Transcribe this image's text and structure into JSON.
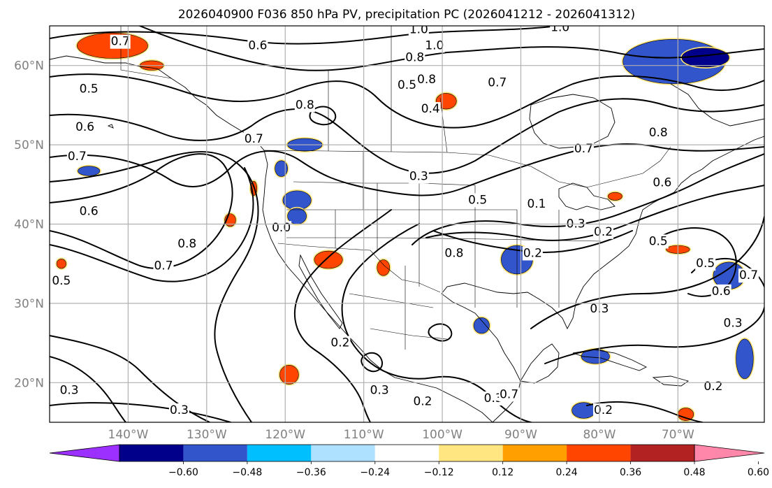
{
  "title": "2026040900 F036 850 hPa PV, precipitation PC (2026041212 - 2026041312)",
  "map": {
    "lon_range": [
      -150,
      -59
    ],
    "lat_range": [
      15,
      65
    ],
    "lat_ticks": [
      {
        "value": 20,
        "label": "20°N"
      },
      {
        "value": 30,
        "label": "30°N"
      },
      {
        "value": 40,
        "label": "40°N"
      },
      {
        "value": 50,
        "label": "50°N"
      },
      {
        "value": 60,
        "label": "60°N"
      }
    ],
    "lon_ticks": [
      {
        "value": -140,
        "label": "140°W"
      },
      {
        "value": -130,
        "label": "130°W"
      },
      {
        "value": -120,
        "label": "120°W"
      },
      {
        "value": -110,
        "label": "110°W"
      },
      {
        "value": -100,
        "label": "100°W"
      },
      {
        "value": -90,
        "label": "90°W"
      },
      {
        "value": -80,
        "label": "80°W"
      },
      {
        "value": -70,
        "label": "70°W"
      }
    ],
    "grid": true,
    "contour_color": "#000000"
  },
  "contour_labels": [
    {
      "text": "0.7",
      "lon": -141,
      "lat": 63
    },
    {
      "text": "0.6",
      "lon": -123.5,
      "lat": 62.5
    },
    {
      "text": "1.0",
      "lon": -103,
      "lat": 64.5
    },
    {
      "text": "1.0",
      "lon": -85,
      "lat": 64.8
    },
    {
      "text": "0.8",
      "lon": -103.5,
      "lat": 61
    },
    {
      "text": "1.0",
      "lon": -101,
      "lat": 62.5
    },
    {
      "text": "0.8",
      "lon": -102,
      "lat": 58.2
    },
    {
      "text": "0.5",
      "lon": -104.5,
      "lat": 57.5
    },
    {
      "text": "0.7",
      "lon": -93,
      "lat": 57.8
    },
    {
      "text": "0.4",
      "lon": -101.5,
      "lat": 54.5
    },
    {
      "text": "0.8",
      "lon": -117.5,
      "lat": 55
    },
    {
      "text": "0.5",
      "lon": -145,
      "lat": 57
    },
    {
      "text": "0.6",
      "lon": -145.5,
      "lat": 52.2
    },
    {
      "text": "0.7",
      "lon": -146.5,
      "lat": 48.5
    },
    {
      "text": "0.7",
      "lon": -124,
      "lat": 50.7
    },
    {
      "text": "0.3",
      "lon": -103,
      "lat": 46
    },
    {
      "text": "0.5",
      "lon": -95.5,
      "lat": 43
    },
    {
      "text": "0.6",
      "lon": -145,
      "lat": 41.6
    },
    {
      "text": "0.8",
      "lon": -132.5,
      "lat": 37.5
    },
    {
      "text": "0.7",
      "lon": -135.5,
      "lat": 34.7
    },
    {
      "text": "0.0",
      "lon": -120.5,
      "lat": 39.5
    },
    {
      "text": "0.8",
      "lon": -98.5,
      "lat": 36.3
    },
    {
      "text": "0.2",
      "lon": -88.5,
      "lat": 36.3
    },
    {
      "text": "0.3",
      "lon": -83,
      "lat": 40
    },
    {
      "text": "0.2",
      "lon": -79.5,
      "lat": 39
    },
    {
      "text": "0.1",
      "lon": -88,
      "lat": 42.5
    },
    {
      "text": "0.8",
      "lon": -72.5,
      "lat": 51.5
    },
    {
      "text": "0.6",
      "lon": -72,
      "lat": 45.2
    },
    {
      "text": "0.7",
      "lon": -82,
      "lat": 49.5
    },
    {
      "text": "0.5",
      "lon": -72.5,
      "lat": 37.8
    },
    {
      "text": "0.5",
      "lon": -66.5,
      "lat": 35
    },
    {
      "text": "0.6",
      "lon": -64.5,
      "lat": 31.5
    },
    {
      "text": "0.7",
      "lon": -61,
      "lat": 33.5
    },
    {
      "text": "0.3",
      "lon": -63,
      "lat": 27.5
    },
    {
      "text": "0.3",
      "lon": -80,
      "lat": 29.3
    },
    {
      "text": "0.2",
      "lon": -113,
      "lat": 25
    },
    {
      "text": "0.3",
      "lon": -108,
      "lat": 19
    },
    {
      "text": "0.2",
      "lon": -102.5,
      "lat": 17.6
    },
    {
      "text": "0.3",
      "lon": -93.5,
      "lat": 18
    },
    {
      "text": "0.7",
      "lon": -91.5,
      "lat": 18.5
    },
    {
      "text": "0.2",
      "lon": -79.5,
      "lat": 16.5
    },
    {
      "text": "0.2",
      "lon": -65.5,
      "lat": 19.5
    },
    {
      "text": "0.3",
      "lon": -147.5,
      "lat": 19
    },
    {
      "text": "0.3",
      "lon": -133.5,
      "lat": 16.5
    },
    {
      "text": "0.5",
      "lon": -148.5,
      "lat": 32.8
    }
  ],
  "colorbar": {
    "colors": [
      "#9b30ff",
      "#00008b",
      "#3355cc",
      "#00bfff",
      "#aee1ff",
      "#ffffff",
      "#ffe680",
      "#ffa000",
      "#ff4500",
      "#b22222",
      "#ff88aa"
    ],
    "tick_labels": [
      "−0.60",
      "−0.48",
      "−0.36",
      "−0.24",
      "−0.12",
      "0.12",
      "0.24",
      "0.36",
      "0.48",
      "0.60"
    ]
  },
  "precip_blobs": [
    {
      "lon": -142,
      "lat": 62.5,
      "rx": 4.5,
      "ry": 1.6,
      "color": "#ff4500"
    },
    {
      "lon": -137,
      "lat": 60,
      "rx": 1.5,
      "ry": 0.6,
      "color": "#ff4500"
    },
    {
      "lon": -99.5,
      "lat": 55.5,
      "rx": 1.3,
      "ry": 1,
      "color": "#ff4500"
    },
    {
      "lon": -117.5,
      "lat": 50,
      "rx": 2.2,
      "ry": 0.8,
      "color": "#3355cc"
    },
    {
      "lon": -120.5,
      "lat": 47,
      "rx": 0.8,
      "ry": 1,
      "color": "#3355cc"
    },
    {
      "lon": -118.5,
      "lat": 43,
      "rx": 1.8,
      "ry": 1.2,
      "color": "#3355cc"
    },
    {
      "lon": -118.5,
      "lat": 41,
      "rx": 1.2,
      "ry": 1,
      "color": "#3355cc"
    },
    {
      "lon": -114.5,
      "lat": 35.5,
      "rx": 1.8,
      "ry": 1.1,
      "color": "#ff4500"
    },
    {
      "lon": -107.5,
      "lat": 34.5,
      "rx": 0.8,
      "ry": 1,
      "color": "#ff4500"
    },
    {
      "lon": -127,
      "lat": 40.5,
      "rx": 0.7,
      "ry": 0.8,
      "color": "#ff4500"
    },
    {
      "lon": -124,
      "lat": 44.5,
      "rx": 0.4,
      "ry": 0.9,
      "color": "#ff4500"
    },
    {
      "lon": -145,
      "lat": 46.7,
      "rx": 1.4,
      "ry": 0.6,
      "color": "#3355cc"
    },
    {
      "lon": -90.5,
      "lat": 35.5,
      "rx": 2,
      "ry": 1.8,
      "color": "#3355cc"
    },
    {
      "lon": -70.5,
      "lat": 60.5,
      "rx": 6.5,
      "ry": 2.8,
      "color": "#3355cc"
    },
    {
      "lon": -66.5,
      "lat": 61,
      "rx": 3,
      "ry": 1.2,
      "color": "#00008b"
    },
    {
      "lon": -78,
      "lat": 43.5,
      "rx": 0.9,
      "ry": 0.5,
      "color": "#ff4500"
    },
    {
      "lon": -70,
      "lat": 36.8,
      "rx": 1.5,
      "ry": 0.5,
      "color": "#ff4500"
    },
    {
      "lon": -63.5,
      "lat": 33.5,
      "rx": 2,
      "ry": 1.7,
      "color": "#3355cc"
    },
    {
      "lon": -61.5,
      "lat": 23,
      "rx": 1.1,
      "ry": 2.5,
      "color": "#3355cc"
    },
    {
      "lon": -119.5,
      "lat": 21,
      "rx": 1.2,
      "ry": 1.2,
      "color": "#ff4500"
    },
    {
      "lon": -95,
      "lat": 27.2,
      "rx": 1,
      "ry": 1,
      "color": "#3355cc"
    },
    {
      "lon": -80.5,
      "lat": 23.3,
      "rx": 1.8,
      "ry": 0.9,
      "color": "#3355cc"
    },
    {
      "lon": -82,
      "lat": 16.5,
      "rx": 1.5,
      "ry": 1,
      "color": "#3355cc"
    },
    {
      "lon": -69,
      "lat": 16,
      "rx": 1,
      "ry": 0.8,
      "color": "#ff4500"
    },
    {
      "lon": -148.5,
      "lat": 35,
      "rx": 0.6,
      "ry": 0.6,
      "color": "#ff4500"
    }
  ]
}
